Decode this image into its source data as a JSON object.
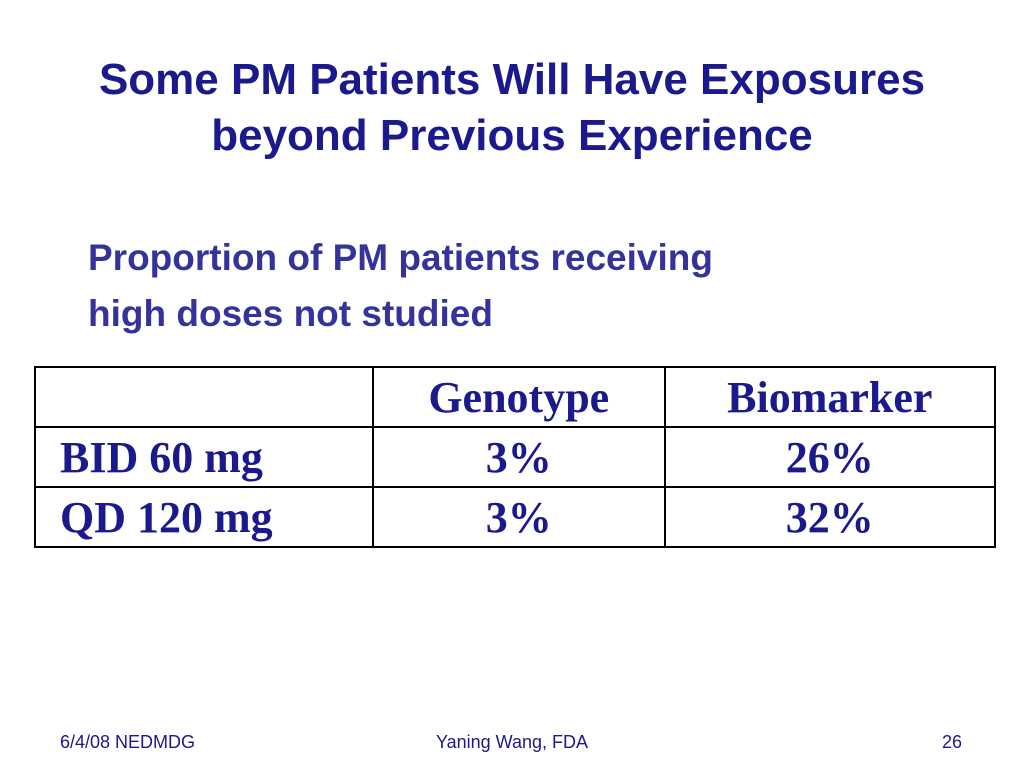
{
  "slide": {
    "title_line1": "Some PM Patients Will Have Exposures",
    "title_line2": "beyond Previous Experience",
    "subtitle_line1": "Proportion of PM patients receiving",
    "subtitle_line2": "high doses not studied"
  },
  "table": {
    "headers": [
      "",
      "Genotype",
      "Biomarker"
    ],
    "rows": [
      {
        "label": "BID 60 mg",
        "genotype": "3%",
        "biomarker": "26%"
      },
      {
        "label": "QD 120 mg",
        "genotype": "3%",
        "biomarker": "32%"
      }
    ]
  },
  "footer": {
    "left": "6/4/08 NEDMDG",
    "center": "Yaning Wang, FDA",
    "right": "26"
  },
  "colors": {
    "title": "#1a1a8c",
    "subtitle": "#33339a",
    "table_text": "#1a1a8c",
    "border": "#000000",
    "background": "#ffffff"
  }
}
